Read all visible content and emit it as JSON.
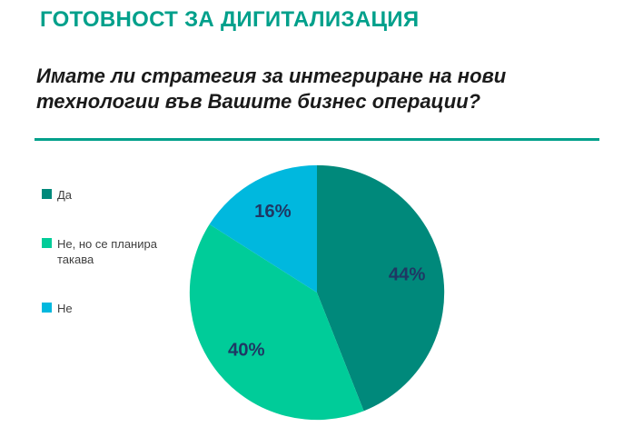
{
  "page": {
    "title": "ГОТОВНОСТ ЗА ДИГИТАЛИЗАЦИЯ",
    "question": "Имате ли стратегия за интегриране на нови технологии във Вашите бизнес операции?"
  },
  "colors": {
    "title": "#00A08B",
    "divider": "#00A08B",
    "value_label": "#1F3864",
    "legend_text": "#3f3f3f"
  },
  "chart_data": {
    "type": "pie",
    "title": "Имате ли стратегия за интегриране на нови технологии във Вашите бизнес операции?",
    "labels": [
      "Да",
      "Не, но се планира такава",
      "Не"
    ],
    "values": [
      44,
      40,
      16
    ],
    "value_labels": [
      "44%",
      "40%",
      "16%"
    ],
    "slice_colors": [
      "#00897B",
      "#00CC99",
      "#00B8DE"
    ],
    "legend_position": "left",
    "start_angle_deg": 0,
    "direction": "clockwise",
    "label_radius_fraction": 0.72
  }
}
